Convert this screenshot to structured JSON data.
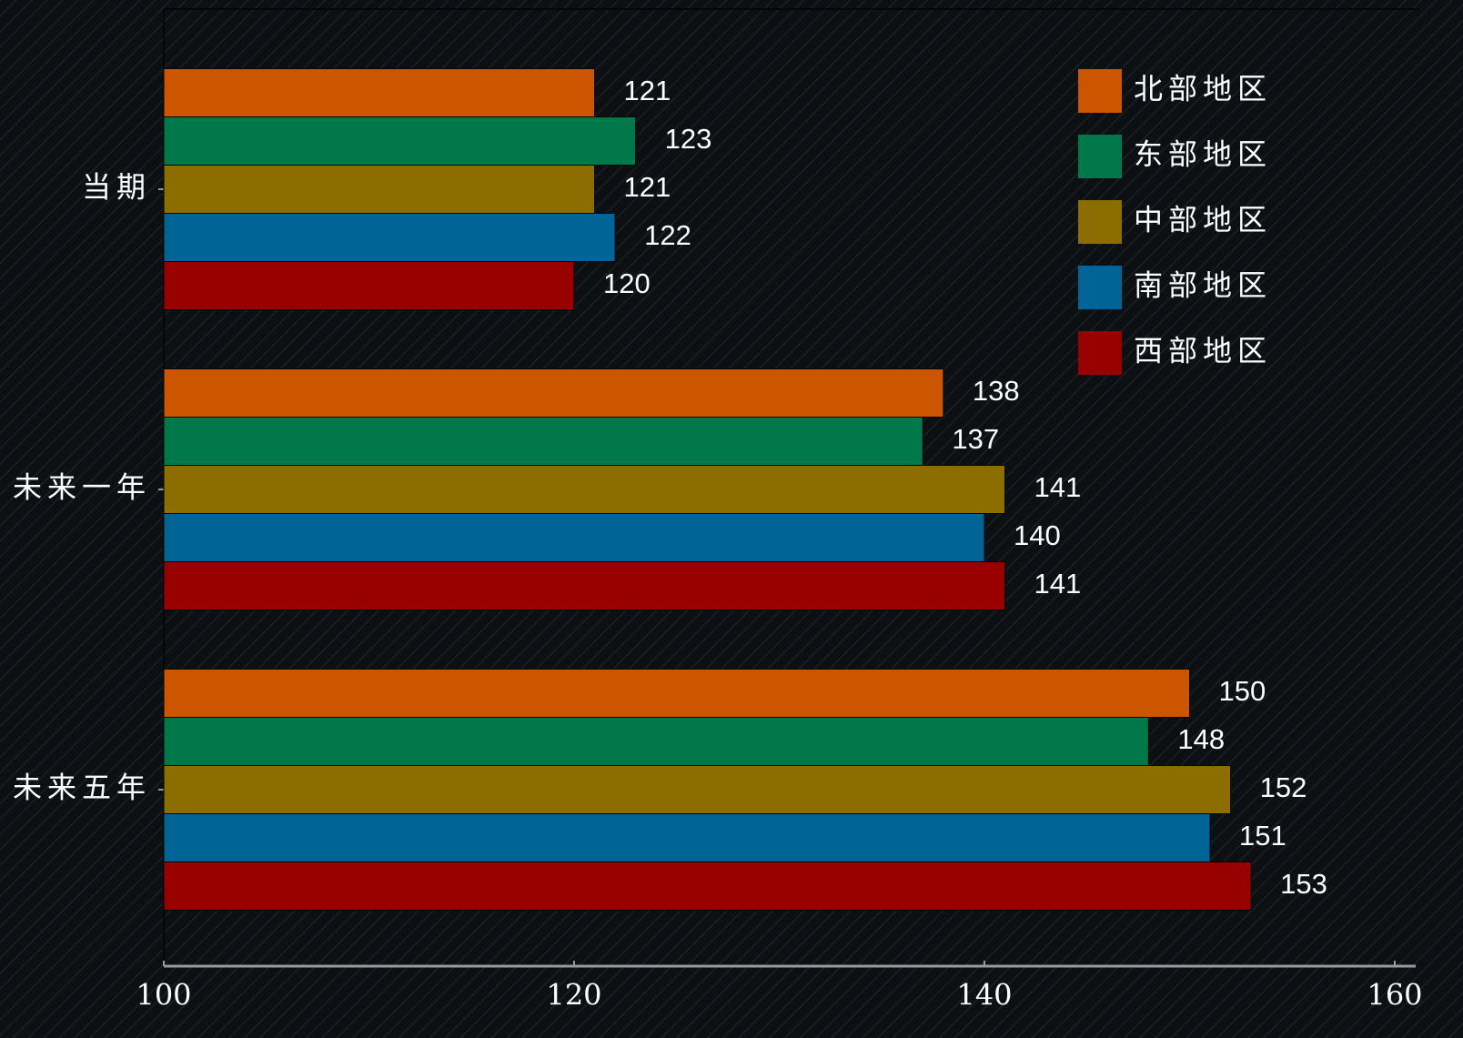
{
  "chart_data": {
    "type": "bar",
    "orientation": "horizontal",
    "categories": [
      "当期",
      "未来一年",
      "未来五年"
    ],
    "series": [
      {
        "name": "北部地区",
        "color": "#cc5500",
        "values": [
          121,
          138,
          150
        ]
      },
      {
        "name": "东部地区",
        "color": "#00784a",
        "values": [
          123,
          137,
          148
        ]
      },
      {
        "name": "中部地区",
        "color": "#8c6d00",
        "values": [
          121,
          141,
          152
        ]
      },
      {
        "name": "南部地区",
        "color": "#006596",
        "values": [
          122,
          140,
          151
        ]
      },
      {
        "name": "西部地区",
        "color": "#990000",
        "values": [
          120,
          141,
          153
        ]
      }
    ],
    "xlim": [
      100,
      160
    ],
    "xticks": [
      100,
      120,
      140,
      160
    ],
    "legend": "upper right"
  }
}
